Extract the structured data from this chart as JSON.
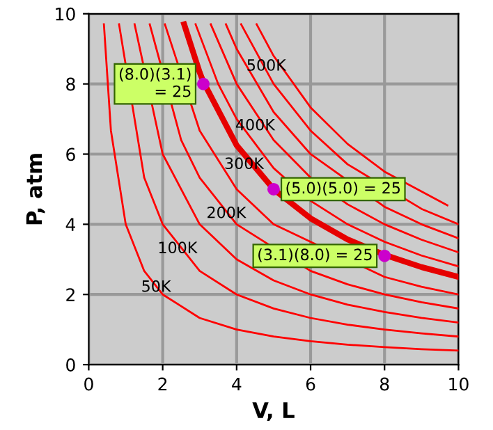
{
  "chart_data": {
    "type": "line",
    "xlabel": "V, L",
    "ylabel": "P, atm",
    "xlim": [
      0,
      10
    ],
    "ylim": [
      0,
      10
    ],
    "xticks": [
      0,
      2,
      4,
      6,
      8,
      10
    ],
    "yticks": [
      0,
      2,
      4,
      6,
      8,
      10
    ],
    "grid": true,
    "series": [
      {
        "color": "#ff0000",
        "x": [
          0.41,
          0.6,
          1,
          1.5,
          2,
          3,
          4,
          5,
          6,
          7,
          8,
          9,
          10
        ],
        "values": [
          9.7,
          6.67,
          4,
          2.67,
          2,
          1.33,
          1,
          0.8,
          0.67,
          0.57,
          0.5,
          0.44,
          0.4
        ]
      },
      {
        "color": "#ff0000",
        "x": [
          0.82,
          1.5,
          2,
          3,
          4,
          5,
          6,
          7,
          8,
          9,
          10
        ],
        "values": [
          9.7,
          5.33,
          4,
          2.67,
          2,
          1.6,
          1.33,
          1.14,
          1,
          0.89,
          0.8
        ]
      },
      {
        "color": "#ff0000",
        "x": [
          1.24,
          2,
          3,
          4,
          5,
          6,
          7,
          8,
          9,
          10
        ],
        "values": [
          9.7,
          6,
          4,
          3,
          2.4,
          2,
          1.71,
          1.5,
          1.33,
          1.2
        ]
      },
      {
        "color": "#ff0000",
        "x": [
          1.65,
          2.5,
          3,
          4,
          6,
          7,
          8,
          9,
          10
        ],
        "values": [
          9.7,
          6.4,
          5.33,
          4,
          2.67,
          2.29,
          2,
          1.78,
          1.6
        ]
      },
      {
        "color": "#ff0000",
        "x": [
          2.06,
          3,
          4,
          5,
          8,
          9,
          10
        ],
        "values": [
          9.7,
          6.67,
          5,
          4,
          2.5,
          2.22,
          2
        ]
      },
      {
        "color": "#e60000",
        "x": [
          2.58,
          3,
          3.1,
          4,
          5,
          6,
          7,
          8,
          9,
          10
        ],
        "values": [
          9.7,
          8.33,
          8.06,
          6.25,
          5,
          4.17,
          3.57,
          3.13,
          2.78,
          2.5
        ]
      },
      {
        "color": "#ff0000",
        "x": [
          2.89,
          3.5,
          4,
          5,
          6,
          7,
          8,
          9,
          10
        ],
        "values": [
          9.7,
          8,
          7,
          5.6,
          4.67,
          4,
          3.5,
          3.11,
          2.8
        ]
      },
      {
        "color": "#ff0000",
        "x": [
          3.3,
          4,
          5,
          6,
          7,
          8,
          9,
          10
        ],
        "values": [
          9.7,
          8,
          6.4,
          5.33,
          4.57,
          4,
          3.56,
          3.2
        ]
      },
      {
        "color": "#ff0000",
        "x": [
          3.71,
          4,
          5,
          6,
          8,
          9,
          10
        ],
        "values": [
          9.7,
          9,
          7.2,
          6,
          4.5,
          4,
          3.6
        ]
      },
      {
        "color": "#ff0000",
        "x": [
          4.12,
          5,
          6,
          7,
          9,
          10
        ],
        "values": [
          9.7,
          8,
          6.67,
          5.71,
          4.44,
          4
        ]
      },
      {
        "color": "#ff0000",
        "x": [
          4.54,
          5,
          6,
          7,
          8,
          9.7
        ],
        "values": [
          9.7,
          8.8,
          7.33,
          6.29,
          5.5,
          4.54
        ]
      },
      {
        "type": "scatter",
        "color": "#cc00cc",
        "marker": "circle",
        "x": [
          3.1,
          5,
          8
        ],
        "values": [
          8,
          5,
          3.1
        ]
      }
    ],
    "annotations": [
      {
        "text": "50K",
        "x": 1.82,
        "y": 2.2
      },
      {
        "text": "100K",
        "x": 2.4,
        "y": 3.3
      },
      {
        "text": "200K",
        "x": 3.72,
        "y": 4.3
      },
      {
        "text": "300K",
        "x": 4.2,
        "y": 5.7
      },
      {
        "text": "400K",
        "x": 4.5,
        "y": 6.8
      },
      {
        "text": "500K",
        "x": 4.8,
        "y": 8.5
      },
      {
        "text": "(8.0)(3.1)\n= 25",
        "x": 3.1,
        "y": 8
      },
      {
        "text": "(5.0)(5.0) = 25",
        "x": 5,
        "y": 5
      },
      {
        "text": "(3.1)(8.0) = 25",
        "x": 8,
        "y": 3.1
      }
    ]
  }
}
